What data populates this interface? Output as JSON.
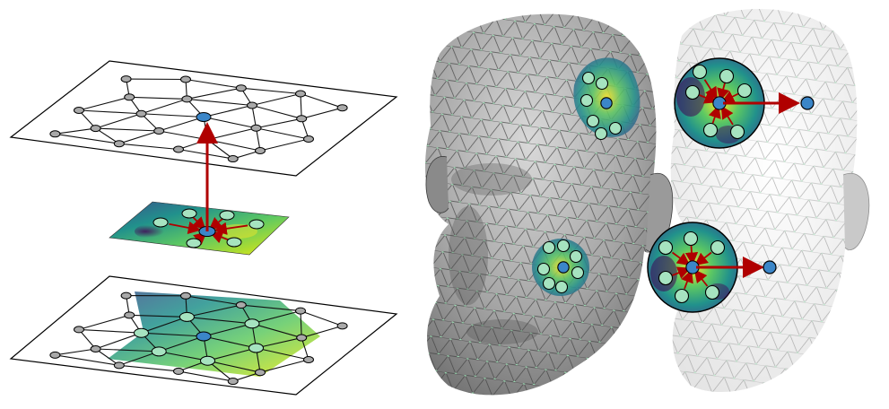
{
  "figure": {
    "description_visible_text": "",
    "panels": [
      {
        "id": "graph-convolution-schematic",
        "layers": [
          "input-graph",
          "kernel-patch",
          "output-graph"
        ]
      },
      {
        "id": "mesh-convolution-illustration",
        "subjects": [
          "head-mesh-with-patches",
          "head-mesh-faded-with-kernels"
        ]
      }
    ],
    "colors": {
      "graph_edge": "#111111",
      "node_gray": "#a9a9a9",
      "node_green": "#a6e3c0",
      "node_center": "#3b86c8",
      "arrow_red": "#b00000",
      "mesh_gray": "#9a9a9a",
      "mesh_wire": "#4a4a4a",
      "mesh_vertex_green": "#9ee6b8",
      "viridis_dark": "#440154",
      "viridis_mid": "#21918c",
      "viridis_light": "#fde725"
    },
    "icons": [
      "red-arrow",
      "blue-node",
      "green-node",
      "gray-node"
    ]
  }
}
